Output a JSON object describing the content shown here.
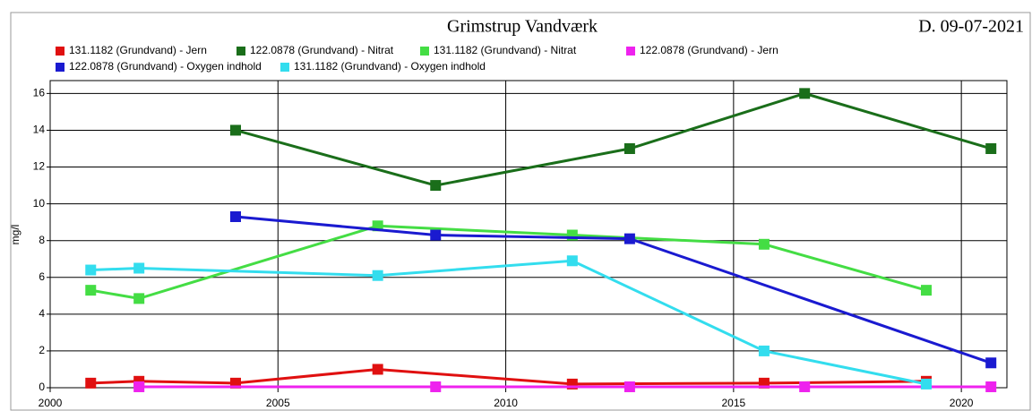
{
  "chart_data": {
    "type": "line",
    "title": "Grimstrup Vandværk",
    "subtitle": "D. 09-07-2021",
    "y_label": "mg/l",
    "xlim": [
      2000,
      2021
    ],
    "ylim": [
      0,
      16.7
    ],
    "xticks": [
      2000,
      2005,
      2010,
      2015,
      2020
    ],
    "yticks": [
      0,
      2,
      4,
      6,
      8,
      10,
      12,
      14,
      16
    ],
    "grid": true,
    "series": [
      {
        "name": "131.1182 (Grundvand) - Jern",
        "color": "#e01010",
        "x": [
          2000.89,
          2001.95,
          2004.07,
          2007.19,
          2011.46,
          2015.67,
          2019.23
        ],
        "values": [
          0.25,
          0.35,
          0.25,
          1.0,
          0.2,
          0.25,
          0.35
        ]
      },
      {
        "name": "122.0878 (Grundvand) - Nitrat",
        "color": "#1a6e1a",
        "x": [
          2004.07,
          2008.46,
          2012.72,
          2016.56,
          2020.65
        ],
        "values": [
          14,
          11,
          13,
          16,
          13
        ]
      },
      {
        "name": "131.1182 (Grundvand) - Nitrat",
        "color": "#44dd44",
        "x": [
          2000.89,
          2001.95,
          2007.19,
          2011.46,
          2015.67,
          2019.23
        ],
        "values": [
          5.3,
          4.85,
          8.8,
          8.3,
          7.8,
          5.3
        ]
      },
      {
        "name": "122.0878 (Grundvand) - Jern",
        "color": "#ee22ee",
        "x": [
          2001.95,
          2008.46,
          2012.72,
          2016.56,
          2020.65
        ],
        "values": [
          0.05,
          0.05,
          0.05,
          0.05,
          0.05
        ]
      },
      {
        "name": "122.0878 (Grundvand) - Oxygen indhold",
        "color": "#1a1ad0",
        "x": [
          2004.07,
          2008.46,
          2012.72,
          2020.65
        ],
        "values": [
          9.3,
          8.3,
          8.1,
          1.35
        ]
      },
      {
        "name": "131.1182 (Grundvand) - Oxygen indhold",
        "color": "#33ddee",
        "x": [
          2000.89,
          2001.95,
          2007.19,
          2011.46,
          2015.67,
          2019.23
        ],
        "values": [
          6.4,
          6.5,
          6.1,
          6.9,
          2.0,
          0.2
        ]
      }
    ]
  }
}
